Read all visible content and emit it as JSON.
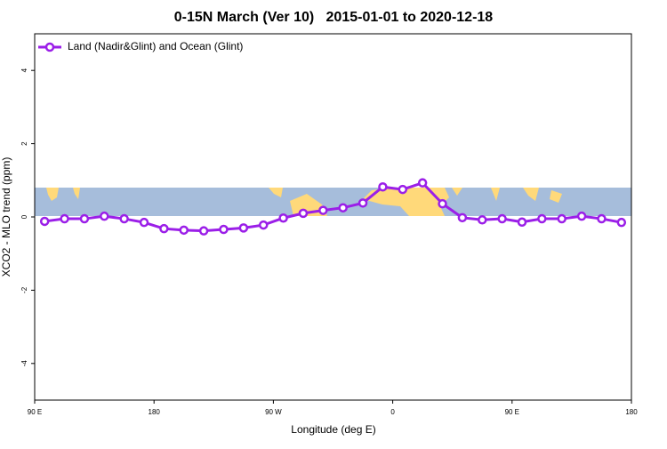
{
  "chart_data": {
    "type": "line",
    "title": "0-15N March (Ver 10)   2015-01-01 to 2020-12-18",
    "x_label": "Longitude (deg E)",
    "y_label": "XCO2 - MLO trend (ppm)",
    "xlim": [
      90,
      540
    ],
    "xticks": [
      {
        "value": 90,
        "label": "90 E"
      },
      {
        "value": 180,
        "label": "180"
      },
      {
        "value": 270,
        "label": "90 W"
      },
      {
        "value": 360,
        "label": "0"
      },
      {
        "value": 450,
        "label": "90 E"
      },
      {
        "value": 540,
        "label": "180"
      }
    ],
    "ylim": [
      -5,
      5
    ],
    "yticks": [
      -4,
      -2,
      0,
      2,
      4
    ],
    "legend": "top-left",
    "x": [
      97.5,
      112.5,
      127.5,
      142.5,
      157.5,
      172.5,
      187.5,
      202.5,
      217.5,
      232.5,
      247.5,
      262.5,
      277.5,
      292.5,
      307.5,
      322.5,
      337.5,
      352.5,
      367.5,
      382.5,
      397.5,
      412.5,
      427.5,
      442.5,
      457.5,
      472.5,
      487.5,
      502.5,
      517.5,
      532.5
    ],
    "series": [
      {
        "name": "Land (Nadir&Glint) and Ocean (Glint)",
        "color": "#9b1fe8",
        "values": [
          -0.12,
          -0.05,
          -0.05,
          0.02,
          -0.05,
          -0.15,
          -0.32,
          -0.36,
          -0.38,
          -0.34,
          -0.3,
          -0.22,
          -0.03,
          0.1,
          0.18,
          0.25,
          0.38,
          0.82,
          0.75,
          0.93,
          0.36,
          -0.02,
          -0.08,
          -0.05,
          -0.14,
          -0.05,
          -0.05,
          0.02,
          -0.05,
          -0.15
        ]
      }
    ]
  }
}
